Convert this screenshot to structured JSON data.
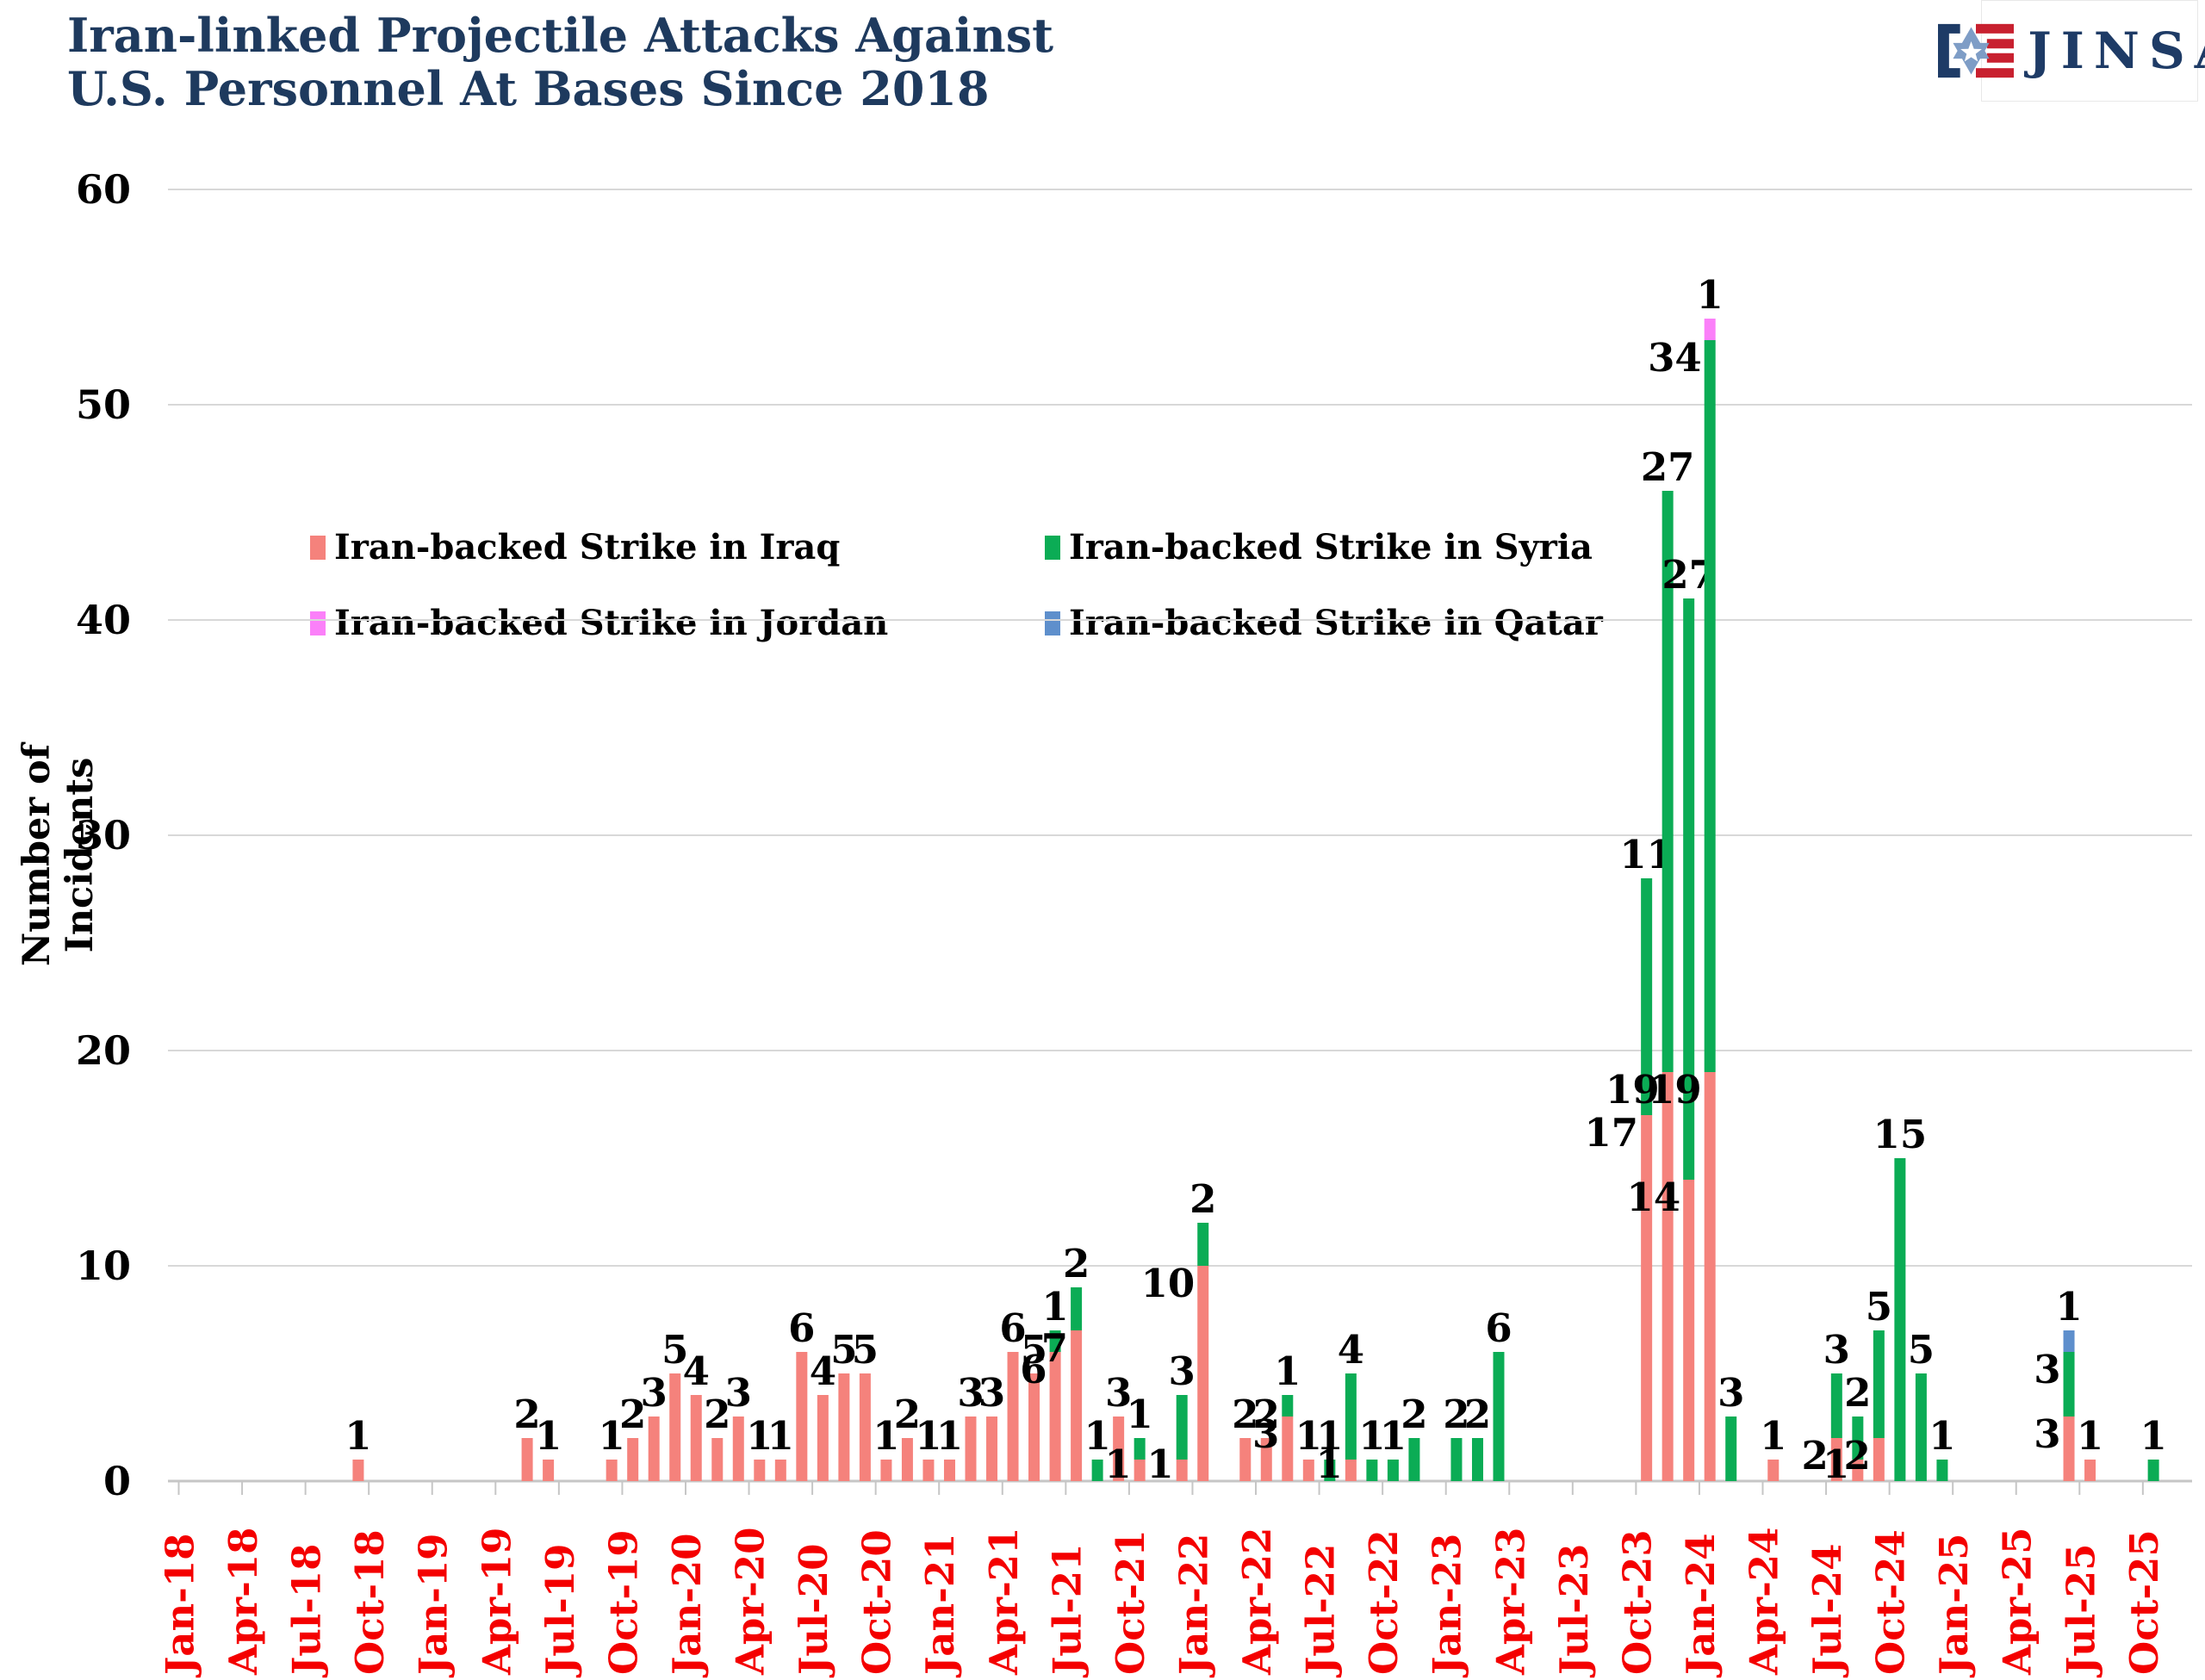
{
  "title": {
    "line1": "Iran-linked Projectile Attacks Against",
    "line2": "U.S. Personnel At Bases Since 2018"
  },
  "logo": {
    "text": "JINSA"
  },
  "y_axis": {
    "title": "Number of Incidents",
    "ticks": [
      0,
      10,
      20,
      30,
      40,
      50,
      60
    ]
  },
  "legend": [
    {
      "key": "iraq",
      "label": "Iran-backed Strike in Iraq",
      "color": "#F5827C"
    },
    {
      "key": "syria",
      "label": "Iran-backed Strike in Syria",
      "color": "#0BAC55"
    },
    {
      "key": "jordan",
      "label": "Iran-backed Strike in Jordan",
      "color": "#FB80F9"
    },
    {
      "key": "qatar",
      "label": "Iran-backed Strike in Qatar",
      "color": "#5E8FCC"
    }
  ],
  "chart_data": {
    "type": "bar",
    "stacked": true,
    "title": "Iran-linked Projectile Attacks Against U.S. Personnel At Bases Since 2018",
    "xlabel": "",
    "ylabel": "Number of Incidents",
    "ylim": [
      0,
      60
    ],
    "gridlines": [
      10,
      20,
      30,
      40,
      50,
      60
    ],
    "legend_position": "upper-left-inside",
    "months_domain": {
      "start": "Jan-18",
      "end": "Oct-25",
      "count": 94
    },
    "x_tick_labels": [
      "Jan-18",
      "Apr-18",
      "Jul-18",
      "Oct-18",
      "Jan-19",
      "Apr-19",
      "Jul-19",
      "Oct-19",
      "Jan-20",
      "Apr-20",
      "Jul-20",
      "Oct-20",
      "Jan-21",
      "Apr-21",
      "Jul-21",
      "Oct-21",
      "Jan-22",
      "Apr-22",
      "Jul-22",
      "Oct-22",
      "Jan-23",
      "Apr-23",
      "Jul-23",
      "Oct-23",
      "Jan-24",
      "Apr-24",
      "Jul-24",
      "Oct-24",
      "Jan-25",
      "Apr-25",
      "Jul-25",
      "Oct-25"
    ],
    "series_order": [
      "iraq",
      "syria",
      "jordan",
      "qatar"
    ],
    "series_colors": {
      "iraq": "#F5827C",
      "syria": "#0BAC55",
      "jordan": "#FB80F9",
      "qatar": "#5E8FCC"
    },
    "bars": [
      {
        "month": "Sep-18",
        "iraq": 1
      },
      {
        "month": "May-19",
        "iraq": 2
      },
      {
        "month": "Jun-19",
        "iraq": 1
      },
      {
        "month": "Sep-19",
        "iraq": 1
      },
      {
        "month": "Oct-19",
        "iraq": 2
      },
      {
        "month": "Nov-19",
        "iraq": 3
      },
      {
        "month": "Dec-19",
        "iraq": 5
      },
      {
        "month": "Jan-20",
        "iraq": 4
      },
      {
        "month": "Feb-20",
        "iraq": 2
      },
      {
        "month": "Mar-20",
        "iraq": 3
      },
      {
        "month": "Apr-20",
        "iraq": 1
      },
      {
        "month": "May-20",
        "iraq": 1
      },
      {
        "month": "Jun-20",
        "iraq": 6
      },
      {
        "month": "Jul-20",
        "iraq": 4
      },
      {
        "month": "Aug-20",
        "iraq": 5
      },
      {
        "month": "Sep-20",
        "iraq": 5
      },
      {
        "month": "Oct-20",
        "iraq": 1
      },
      {
        "month": "Nov-20",
        "iraq": 2
      },
      {
        "month": "Dec-20",
        "iraq": 1
      },
      {
        "month": "Jan-21",
        "iraq": 1
      },
      {
        "month": "Feb-21",
        "iraq": 3
      },
      {
        "month": "Mar-21",
        "iraq": 3
      },
      {
        "month": "Apr-21",
        "iraq": 6
      },
      {
        "month": "May-21",
        "iraq": 5
      },
      {
        "month": "Jun-21",
        "iraq": 6,
        "syria": 1
      },
      {
        "month": "Jul-21",
        "iraq": 7,
        "syria": 2
      },
      {
        "month": "Aug-21",
        "syria": 1
      },
      {
        "month": "Sep-21",
        "iraq": 3
      },
      {
        "month": "Oct-21",
        "iraq": 1,
        "syria": 1
      },
      {
        "month": "Dec-21",
        "iraq": 1,
        "syria": 3
      },
      {
        "month": "Jan-22",
        "iraq": 10,
        "syria": 2
      },
      {
        "month": "Mar-22",
        "iraq": 2
      },
      {
        "month": "Apr-22",
        "iraq": 2
      },
      {
        "month": "May-22",
        "iraq": 3,
        "syria": 1
      },
      {
        "month": "Jun-22",
        "iraq": 1
      },
      {
        "month": "Jul-22",
        "syria": 1
      },
      {
        "month": "Aug-22",
        "iraq": 1,
        "syria": 4
      },
      {
        "month": "Sep-22",
        "syria": 1
      },
      {
        "month": "Oct-22",
        "syria": 1
      },
      {
        "month": "Nov-22",
        "syria": 2
      },
      {
        "month": "Jan-23",
        "syria": 2
      },
      {
        "month": "Feb-23",
        "syria": 2
      },
      {
        "month": "Mar-23",
        "syria": 6
      },
      {
        "month": "Oct-23",
        "iraq": 17,
        "syria": 11
      },
      {
        "month": "Nov-23",
        "iraq": 19,
        "syria": 27
      },
      {
        "month": "Dec-23",
        "iraq": 14,
        "syria": 27
      },
      {
        "month": "Jan-24",
        "iraq": 19,
        "syria": 34,
        "jordan": 1
      },
      {
        "month": "Feb-24",
        "syria": 3
      },
      {
        "month": "Apr-24",
        "iraq": 1
      },
      {
        "month": "Jul-24",
        "iraq": 2,
        "syria": 3
      },
      {
        "month": "Aug-24",
        "iraq": 1,
        "syria": 2
      },
      {
        "month": "Sep-24",
        "iraq": 2,
        "syria": 5
      },
      {
        "month": "Oct-24",
        "syria": 15
      },
      {
        "month": "Nov-24",
        "syria": 5
      },
      {
        "month": "Dec-24",
        "syria": 1
      },
      {
        "month": "Jun-25",
        "iraq": 3,
        "syria": 3,
        "qatar": 1
      },
      {
        "month": "Jul-25",
        "iraq": 1
      },
      {
        "month": "Oct-25",
        "syria": 1
      }
    ]
  }
}
